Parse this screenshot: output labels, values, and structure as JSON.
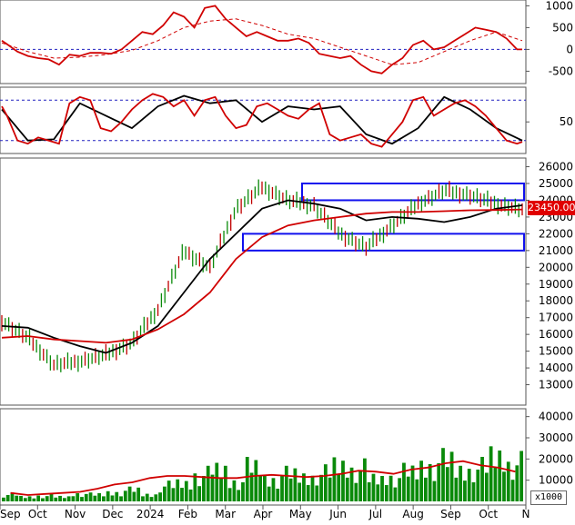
{
  "chart_data": [
    {
      "type": "line",
      "panel": "oscillator-1",
      "y_ticks": [
        "1000",
        "500",
        "0",
        "-500"
      ],
      "ylim": [
        -700,
        1050
      ],
      "reference_lines": [
        0
      ],
      "series": [
        {
          "color": "#d00000",
          "style": "solid",
          "x": [
            0,
            0.01,
            0.03,
            0.05,
            0.07,
            0.09,
            0.11,
            0.13,
            0.15,
            0.17,
            0.19,
            0.21,
            0.23,
            0.25,
            0.27,
            0.29,
            0.31,
            0.33,
            0.35,
            0.37,
            0.39,
            0.41,
            0.43,
            0.45,
            0.47,
            0.49,
            0.51,
            0.53,
            0.55,
            0.57,
            0.59,
            0.61,
            0.63,
            0.65,
            0.67,
            0.69,
            0.71,
            0.73,
            0.75,
            0.77,
            0.79,
            0.81,
            0.83,
            0.85,
            0.87,
            0.89,
            0.91,
            0.93,
            0.95,
            0.97,
            0.99,
            1.0
          ],
          "y": [
            200,
            120,
            -50,
            -150,
            -200,
            -230,
            -350,
            -120,
            -150,
            -80,
            -80,
            -100,
            0,
            200,
            400,
            350,
            550,
            850,
            750,
            500,
            950,
            1000,
            700,
            500,
            300,
            400,
            300,
            200,
            200,
            250,
            150,
            -100,
            -150,
            -200,
            -150,
            -350,
            -500,
            -550,
            -350,
            -200,
            100,
            200,
            0,
            50,
            200,
            350,
            500,
            450,
            400,
            250,
            0,
            0
          ]
        },
        {
          "color": "#d00000",
          "style": "dashed",
          "x": [
            0,
            0.05,
            0.1,
            0.15,
            0.2,
            0.25,
            0.3,
            0.35,
            0.4,
            0.45,
            0.5,
            0.55,
            0.6,
            0.65,
            0.7,
            0.75,
            0.8,
            0.85,
            0.9,
            0.95,
            1.0
          ],
          "y": [
            150,
            -50,
            -200,
            -180,
            -120,
            -20,
            200,
            500,
            650,
            700,
            550,
            350,
            250,
            50,
            -150,
            -350,
            -300,
            -50,
            200,
            400,
            200
          ]
        }
      ]
    },
    {
      "type": "line",
      "panel": "oscillator-2",
      "y_ticks": [
        "50"
      ],
      "ylim": [
        5,
        100
      ],
      "reference_lines": [
        85,
        20
      ],
      "series": [
        {
          "color": "#d00000",
          "style": "solid",
          "x": [
            0,
            0.01,
            0.03,
            0.05,
            0.07,
            0.09,
            0.11,
            0.13,
            0.15,
            0.17,
            0.19,
            0.21,
            0.23,
            0.25,
            0.27,
            0.29,
            0.31,
            0.33,
            0.35,
            0.37,
            0.39,
            0.41,
            0.43,
            0.45,
            0.47,
            0.49,
            0.51,
            0.53,
            0.55,
            0.57,
            0.59,
            0.61,
            0.63,
            0.65,
            0.67,
            0.69,
            0.71,
            0.73,
            0.75,
            0.77,
            0.79,
            0.81,
            0.83,
            0.85,
            0.87,
            0.89,
            0.91,
            0.93,
            0.95,
            0.97,
            0.99,
            1.0
          ],
          "y": [
            75,
            60,
            20,
            15,
            25,
            20,
            15,
            80,
            90,
            85,
            40,
            35,
            50,
            70,
            85,
            95,
            90,
            75,
            85,
            60,
            85,
            90,
            60,
            40,
            45,
            75,
            80,
            70,
            60,
            55,
            70,
            80,
            30,
            20,
            25,
            30,
            15,
            10,
            30,
            50,
            85,
            90,
            60,
            70,
            80,
            85,
            75,
            60,
            40,
            20,
            15,
            18
          ]
        },
        {
          "color": "#000000",
          "style": "solid",
          "x": [
            0,
            0.05,
            0.1,
            0.15,
            0.2,
            0.25,
            0.3,
            0.35,
            0.4,
            0.45,
            0.5,
            0.55,
            0.6,
            0.65,
            0.7,
            0.75,
            0.8,
            0.85,
            0.9,
            0.95,
            1.0
          ],
          "y": [
            70,
            20,
            22,
            80,
            60,
            40,
            75,
            92,
            80,
            85,
            50,
            75,
            70,
            75,
            30,
            15,
            40,
            90,
            70,
            40,
            20
          ]
        }
      ]
    },
    {
      "type": "line",
      "panel": "price",
      "y_ticks": [
        "26000",
        "25000",
        "24000",
        "23000",
        "22000",
        "21000",
        "20000",
        "19000",
        "18000",
        "17000",
        "16000",
        "15000",
        "14000",
        "13000"
      ],
      "ylim": [
        12000,
        26300
      ],
      "current_price_label": "23450.00",
      "x_labels": [
        "Sep",
        "Oct",
        "Nov",
        "Dec",
        "2024",
        "Feb",
        "Mar",
        "Apr",
        "May",
        "Jun",
        "Jul",
        "Aug",
        "Sep",
        "Oct",
        "N"
      ],
      "series": [
        {
          "color": "#000000",
          "style": "solid",
          "x": [
            0,
            0.05,
            0.1,
            0.15,
            0.2,
            0.25,
            0.3,
            0.35,
            0.4,
            0.45,
            0.5,
            0.55,
            0.6,
            0.65,
            0.7,
            0.75,
            0.8,
            0.85,
            0.9,
            0.95,
            1.0
          ],
          "y": [
            16500,
            16400,
            15800,
            15300,
            14900,
            15500,
            16500,
            18500,
            20500,
            22000,
            23500,
            24000,
            23800,
            23500,
            22800,
            23000,
            22900,
            22700,
            23000,
            23500,
            23700
          ]
        },
        {
          "color": "#d00000",
          "style": "solid",
          "x": [
            0,
            0.05,
            0.1,
            0.15,
            0.2,
            0.25,
            0.3,
            0.35,
            0.4,
            0.45,
            0.5,
            0.55,
            0.6,
            0.65,
            0.7,
            0.75,
            0.8,
            0.85,
            0.9,
            0.95,
            1.0
          ],
          "y": [
            15800,
            15900,
            15700,
            15600,
            15500,
            15700,
            16300,
            17200,
            18500,
            20500,
            21800,
            22500,
            22800,
            23000,
            23200,
            23300,
            23300,
            23350,
            23400,
            23420,
            23450
          ]
        },
        {
          "color": "#0a8a0a",
          "style": "bars",
          "x": [
            0,
            0.05,
            0.1,
            0.15,
            0.2,
            0.25,
            0.3,
            0.35,
            0.4,
            0.45,
            0.5,
            0.55,
            0.6,
            0.65,
            0.7,
            0.75,
            0.8,
            0.85,
            0.9,
            0.95,
            1.0
          ],
          "y": [
            16800,
            15800,
            14200,
            14400,
            14800,
            15500,
            17500,
            21000,
            20000,
            23500,
            24800,
            24000,
            23700,
            22000,
            21200,
            22500,
            23800,
            24600,
            24300,
            23800,
            23450
          ]
        }
      ],
      "zones": [
        {
          "from": 24000,
          "to": 25000,
          "color": "#1010ee"
        },
        {
          "from": 21000,
          "to": 22000,
          "color": "#1010ee"
        }
      ]
    },
    {
      "type": "bar",
      "panel": "volume",
      "y_ticks": [
        "40000",
        "30000",
        "20000",
        "10000"
      ],
      "ylim": [
        0,
        42000
      ],
      "unit_label": "x1000",
      "volume_bars": [
        3000,
        2000,
        2500,
        2000,
        3500,
        3000,
        4000,
        5000,
        3000,
        7000,
        8000,
        12000,
        14000,
        9000,
        15000,
        10000,
        12000,
        11000,
        12500,
        16000,
        14500,
        10000,
        11000,
        13000,
        16000,
        18000,
        14000,
        15000,
        20000,
        17000
      ],
      "volume_ma": [
        4000,
        3000,
        3500,
        4000,
        4500,
        6000,
        8000,
        9000,
        11000,
        12000,
        12000,
        11500,
        11000,
        11000,
        12000,
        12500,
        12000,
        11500,
        12000,
        13000,
        14500,
        14000,
        13000,
        15000,
        16000,
        18000,
        19000,
        17000,
        16000,
        14000
      ]
    }
  ]
}
